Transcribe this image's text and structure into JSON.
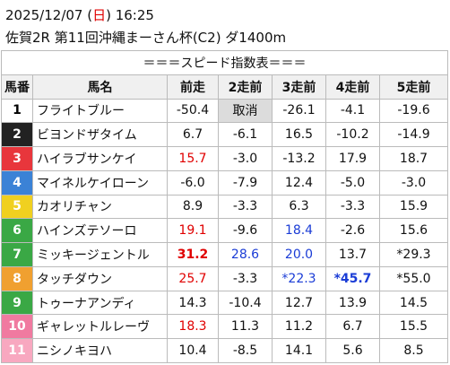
{
  "header": {
    "date_parts": [
      {
        "text": "2025/12/07 ("
      },
      {
        "text": "日",
        "color": "#e00000"
      },
      {
        "text": ") 16:25"
      }
    ],
    "race": "佐賀2R 第11回沖縄まーさん杯(C2) ダ1400m"
  },
  "table": {
    "title": "＝＝＝スピード指数表＝＝＝",
    "columns": [
      "馬番",
      "馬名",
      "前走",
      "2走前",
      "3走前",
      "4走前",
      "5走前"
    ],
    "rows": [
      {
        "no": "1",
        "frame_color": "#ffffff",
        "frame_text": "#000000",
        "name": "フライトブルー",
        "cells": [
          "-50.4",
          {
            "text": "取消",
            "background": "#dcdcdc"
          },
          "-26.1",
          "-4.1",
          "-19.6"
        ]
      },
      {
        "no": "2",
        "frame_color": "#222222",
        "frame_text": "#ffffff",
        "name": "ビヨンドザタイム",
        "cells": [
          "6.7",
          "-6.1",
          "16.5",
          "-10.2",
          "-14.9"
        ]
      },
      {
        "no": "3",
        "frame_color": "#e8363c",
        "frame_text": "#ffffff",
        "name": "ハイラブサンケイ",
        "cells": [
          {
            "text": "15.7",
            "color": "#e00000"
          },
          "-3.0",
          "-13.2",
          "17.9",
          "18.7"
        ]
      },
      {
        "no": "4",
        "frame_color": "#3b82d6",
        "frame_text": "#ffffff",
        "name": "マイネルケイローン",
        "cells": [
          "-6.0",
          "-7.9",
          "12.4",
          "-5.0",
          "-3.0"
        ]
      },
      {
        "no": "5",
        "frame_color": "#f0d020",
        "frame_text": "#ffffff",
        "name": "カオリチャン",
        "cells": [
          "8.9",
          "-3.3",
          "6.3",
          "-3.3",
          "15.9"
        ]
      },
      {
        "no": "6",
        "frame_color": "#3aa845",
        "frame_text": "#ffffff",
        "name": "ハインズテソーロ",
        "cells": [
          {
            "text": "19.1",
            "color": "#e00000"
          },
          "-9.6",
          {
            "text": "18.4",
            "color": "#1a3cd6"
          },
          "-2.6",
          "15.6"
        ]
      },
      {
        "no": "7",
        "frame_color": "#3aa845",
        "frame_text": "#ffffff",
        "name": "ミッキージェントル",
        "cells": [
          {
            "text": "31.2",
            "color": "#e00000",
            "bold": true
          },
          {
            "text": "28.6",
            "color": "#1a3cd6"
          },
          {
            "text": "20.0",
            "color": "#1a3cd6"
          },
          "13.7",
          "*29.3"
        ]
      },
      {
        "no": "8",
        "frame_color": "#f0a030",
        "frame_text": "#ffffff",
        "name": "タッチダウン",
        "cells": [
          {
            "text": "25.7",
            "color": "#e00000"
          },
          "-3.3",
          {
            "text": "*22.3",
            "color": "#1a3cd6"
          },
          {
            "text": "*45.7",
            "color": "#1a3cd6",
            "bold": true
          },
          "*55.0"
        ]
      },
      {
        "no": "9",
        "frame_color": "#3aa845",
        "frame_text": "#ffffff",
        "name": "トゥーナアンディ",
        "cells": [
          "14.3",
          "-10.4",
          "12.7",
          "13.9",
          "14.5"
        ]
      },
      {
        "no": "10",
        "frame_color": "#f07aa0",
        "frame_text": "#ffffff",
        "name": "ギャレットルレーヴ",
        "cells": [
          {
            "text": "18.3",
            "color": "#e00000"
          },
          "11.3",
          "11.2",
          "6.7",
          "15.5"
        ]
      },
      {
        "no": "11",
        "frame_color": "#f8a8c0",
        "frame_text": "#ffffff",
        "name": "ニシノキヨハ",
        "cells": [
          "10.4",
          "-8.5",
          "14.1",
          "5.6",
          "8.5"
        ]
      }
    ]
  }
}
